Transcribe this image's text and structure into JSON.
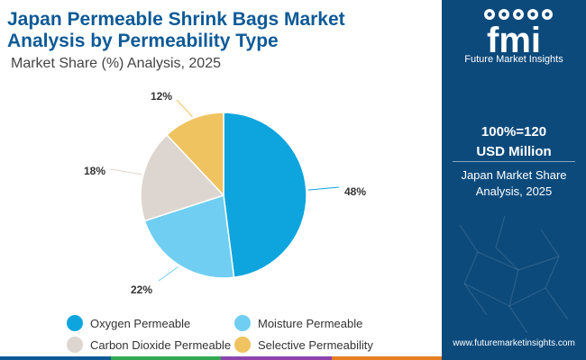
{
  "header": {
    "title_line1": "Japan Permeable Shrink Bags Market",
    "title_line2": "Analysis by Permeability Type",
    "subtitle": "Market Share (%) Analysis, 2025"
  },
  "chart_data": {
    "type": "pie",
    "title": "Japan Permeable Shrink Bags Market Analysis by Permeability Type",
    "subtitle": "Market Share (%) Analysis, 2025",
    "categories": [
      "Oxygen Permeable",
      "Moisture Permeable",
      "Carbon Dioxide Permeable",
      "Selective Permeability"
    ],
    "values": [
      48,
      22,
      18,
      12
    ],
    "labels": [
      "48%",
      "22%",
      "18%",
      "12%"
    ],
    "colors": [
      "#0ea5df",
      "#6fcef1",
      "#ddd6d0",
      "#efc35f"
    ],
    "unit": "%",
    "legend_position": "bottom"
  },
  "legend": {
    "items": [
      {
        "label": "Oxygen Permeable",
        "color": "#0ea5df"
      },
      {
        "label": "Moisture Permeable",
        "color": "#6fcef1"
      },
      {
        "label": "Carbon Dioxide Permeable",
        "color": "#ddd6d0"
      },
      {
        "label": "Selective Permeability",
        "color": "#efc35f"
      }
    ]
  },
  "side_panel": {
    "logo_letters": "fmi",
    "logo_text": "Future Market Insights",
    "total_line1": "100%=120",
    "total_line2": "USD Million",
    "caption_line1": "Japan Market Share",
    "caption_line2": "Analysis, 2025",
    "url": "www.futuremarketinsights.com",
    "background": "#0c4a7c"
  },
  "bottom_bar_colors": [
    "#0d5a97",
    "#32a852",
    "#8e44ad",
    "#e67e22"
  ]
}
